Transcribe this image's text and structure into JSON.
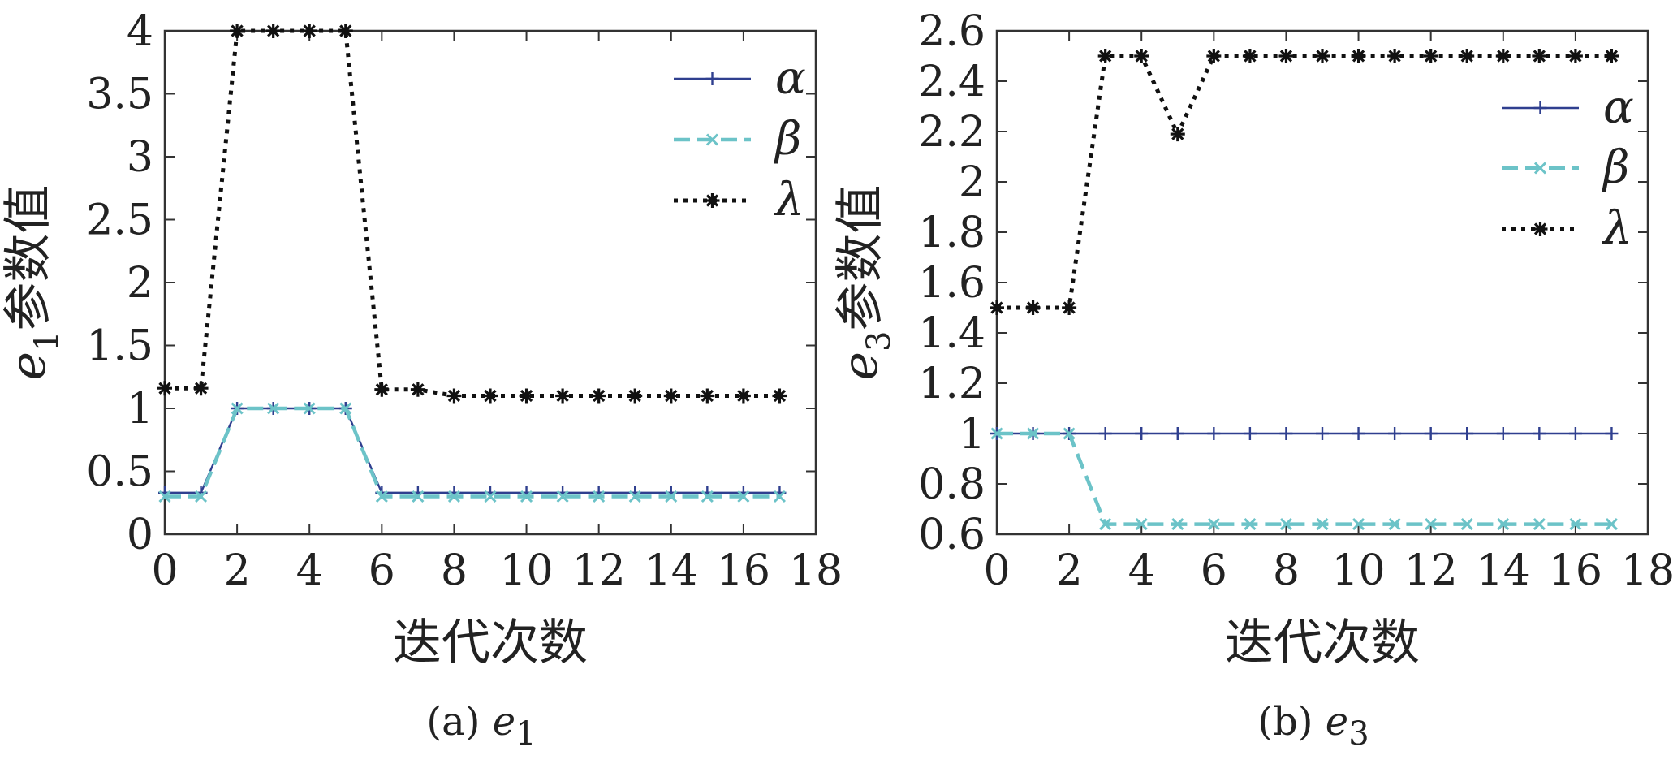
{
  "colors": {
    "alpha": "#2f3f8f",
    "beta": "#6cc3c8",
    "lambda": "#111111",
    "axis": "#333333"
  },
  "chart_data": [
    {
      "type": "line",
      "caption": "(a) e1",
      "caption_prefix": "(a)",
      "caption_var": "e",
      "caption_sub": "1",
      "xlabel": "迭代次数",
      "ylabel": "e1参数值",
      "ylabel_var": "e",
      "ylabel_sub": "1",
      "ylabel_text": "参数值",
      "xlim": [
        0,
        18
      ],
      "ylim": [
        0,
        4
      ],
      "xticks": [
        0,
        2,
        4,
        6,
        8,
        10,
        12,
        14,
        16,
        18
      ],
      "yticks": [
        0,
        0.5,
        1,
        1.5,
        2,
        2.5,
        3,
        3.5,
        4
      ],
      "ytick_labels": [
        "0",
        "0.5",
        "1",
        "1.5",
        "2",
        "2.5",
        "3",
        "3.5",
        "4"
      ],
      "legend_position": "top-right",
      "x": [
        0,
        1,
        2,
        3,
        4,
        5,
        6,
        7,
        8,
        9,
        10,
        11,
        12,
        13,
        14,
        15,
        16,
        17
      ],
      "series": [
        {
          "name": "α",
          "key": "alpha",
          "values": [
            0.33,
            0.33,
            1,
            1,
            1,
            1,
            0.33,
            0.33,
            0.33,
            0.33,
            0.33,
            0.33,
            0.33,
            0.33,
            0.33,
            0.33,
            0.33,
            0.33
          ]
        },
        {
          "name": "β",
          "key": "beta",
          "values": [
            0.3,
            0.3,
            1,
            1,
            1,
            1,
            0.3,
            0.3,
            0.3,
            0.3,
            0.3,
            0.3,
            0.3,
            0.3,
            0.3,
            0.3,
            0.3,
            0.3
          ]
        },
        {
          "name": "λ",
          "key": "lambda",
          "values": [
            1.16,
            1.16,
            4,
            4,
            4,
            4,
            1.15,
            1.15,
            1.1,
            1.1,
            1.1,
            1.1,
            1.1,
            1.1,
            1.1,
            1.1,
            1.1,
            1.1
          ]
        }
      ]
    },
    {
      "type": "line",
      "caption": "(b) e3",
      "caption_prefix": "(b)",
      "caption_var": "e",
      "caption_sub": "3",
      "xlabel": "迭代次数",
      "ylabel": "e3参数值",
      "ylabel_var": "e",
      "ylabel_sub": "3",
      "ylabel_text": "参数值",
      "xlim": [
        0,
        18
      ],
      "ylim": [
        0.6,
        2.6
      ],
      "xticks": [
        0,
        2,
        4,
        6,
        8,
        10,
        12,
        14,
        16,
        18
      ],
      "yticks": [
        0.6,
        0.8,
        1,
        1.2,
        1.4,
        1.6,
        1.8,
        2,
        2.2,
        2.4,
        2.6
      ],
      "ytick_labels": [
        "0.6",
        "0.8",
        "1",
        "1.2",
        "1.4",
        "1.6",
        "1.8",
        "2",
        "2.2",
        "2.4",
        "2.6"
      ],
      "legend_position": "top-right",
      "x": [
        0,
        1,
        2,
        3,
        4,
        5,
        6,
        7,
        8,
        9,
        10,
        11,
        12,
        13,
        14,
        15,
        16,
        17
      ],
      "series": [
        {
          "name": "α",
          "key": "alpha",
          "values": [
            1,
            1,
            1,
            1,
            1,
            1,
            1,
            1,
            1,
            1,
            1,
            1,
            1,
            1,
            1,
            1,
            1,
            1
          ]
        },
        {
          "name": "β",
          "key": "beta",
          "values": [
            1,
            1,
            1,
            0.64,
            0.64,
            0.64,
            0.64,
            0.64,
            0.64,
            0.64,
            0.64,
            0.64,
            0.64,
            0.64,
            0.64,
            0.64,
            0.64,
            0.64
          ]
        },
        {
          "name": "λ",
          "key": "lambda",
          "values": [
            1.5,
            1.5,
            1.5,
            2.5,
            2.5,
            2.19,
            2.5,
            2.5,
            2.5,
            2.5,
            2.5,
            2.5,
            2.5,
            2.5,
            2.5,
            2.5,
            2.5,
            2.5
          ]
        }
      ]
    }
  ]
}
